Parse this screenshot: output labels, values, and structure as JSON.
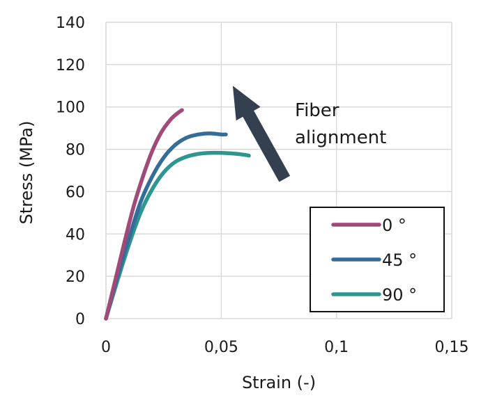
{
  "chart_data": {
    "type": "line",
    "title": "",
    "xlabel": "Strain (-)",
    "ylabel": "Stress (MPa)",
    "xlim": [
      0,
      0.15
    ],
    "ylim": [
      0,
      140
    ],
    "x_ticks": [
      0,
      0.05,
      0.1,
      0.15
    ],
    "x_tick_labels": [
      "0",
      "0,05",
      "0,1",
      "0,15"
    ],
    "y_ticks": [
      0,
      20,
      40,
      60,
      80,
      100,
      120,
      140
    ],
    "y_tick_labels": [
      "0",
      "20",
      "40",
      "60",
      "80",
      "100",
      "120",
      "140"
    ],
    "grid": true,
    "legend_position": "bottom-right",
    "annotation": {
      "lines": [
        "Fiber",
        "alignment"
      ],
      "arrow_from": [
        0.0775,
        66
      ],
      "arrow_to": [
        0.055,
        110
      ],
      "arrow_color": "#344050"
    },
    "series": [
      {
        "name": "0 °",
        "color": "#a04a78",
        "x": [
          0,
          0.004,
          0.008,
          0.012,
          0.016,
          0.02,
          0.024,
          0.028,
          0.031,
          0.033
        ],
        "y": [
          0,
          18,
          36,
          53,
          67,
          79,
          88,
          94,
          97,
          98.5
        ]
      },
      {
        "name": "45 °",
        "color": "#356d98",
        "x": [
          0,
          0.005,
          0.01,
          0.015,
          0.02,
          0.025,
          0.03,
          0.035,
          0.04,
          0.045,
          0.05,
          0.052
        ],
        "y": [
          0,
          20,
          38,
          55,
          67,
          76,
          82,
          85.5,
          87,
          87.5,
          87,
          87
        ]
      },
      {
        "name": "90 °",
        "color": "#2e9690",
        "x": [
          0,
          0.005,
          0.01,
          0.015,
          0.02,
          0.025,
          0.03,
          0.035,
          0.04,
          0.045,
          0.05,
          0.055,
          0.06,
          0.062
        ],
        "y": [
          0,
          18,
          35,
          50,
          61,
          69,
          74,
          76.5,
          77.8,
          78.3,
          78.3,
          78,
          77.4,
          77
        ]
      }
    ]
  }
}
